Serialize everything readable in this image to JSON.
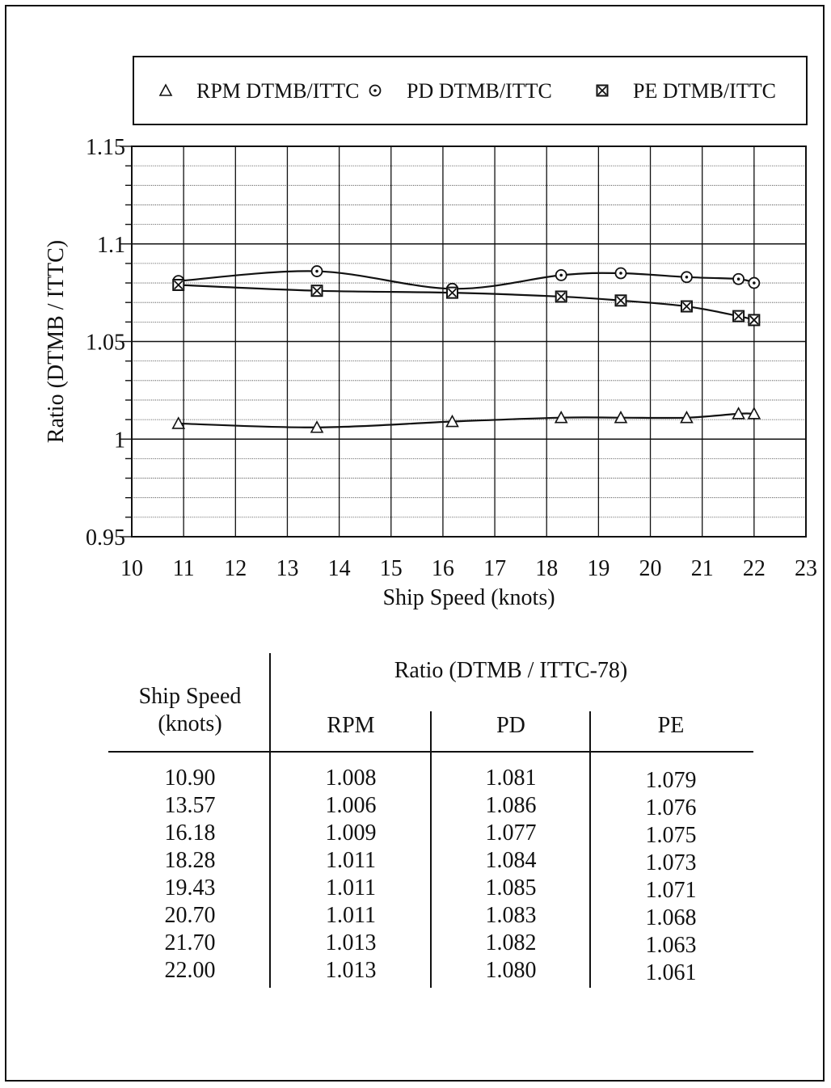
{
  "chart_data": {
    "type": "line",
    "title": "",
    "xlabel": "Ship Speed (knots)",
    "ylabel": "Ratio (DTMB / ITTC)",
    "xlim": [
      10,
      23
    ],
    "ylim": [
      0.95,
      1.15
    ],
    "x_ticks": [
      "10",
      "11",
      "12",
      "13",
      "14",
      "15",
      "16",
      "17",
      "18",
      "19",
      "20",
      "21",
      "22",
      "23"
    ],
    "y_ticks": [
      "0.95",
      "1",
      "1.05",
      "1.1",
      "1.15"
    ],
    "grid": true,
    "legend_position": "top",
    "x": [
      10.9,
      13.57,
      16.18,
      18.28,
      19.43,
      20.7,
      21.7,
      22.0
    ],
    "series": [
      {
        "name": "RPM DTMB/ITTC",
        "marker": "triangle",
        "values": [
          1.008,
          1.006,
          1.009,
          1.011,
          1.011,
          1.011,
          1.013,
          1.013
        ]
      },
      {
        "name": "PD DTMB/ITTC",
        "marker": "dotted-circle",
        "values": [
          1.081,
          1.086,
          1.077,
          1.084,
          1.085,
          1.083,
          1.082,
          1.08
        ]
      },
      {
        "name": "PE DTMB/ITTC",
        "marker": "crossed-square",
        "values": [
          1.079,
          1.076,
          1.075,
          1.073,
          1.071,
          1.068,
          1.063,
          1.061
        ]
      }
    ]
  },
  "table": {
    "speed_header_line1": "Ship Speed",
    "speed_header_line2": "(knots)",
    "group_header": "Ratio (DTMB / ITTC-78)",
    "col_headers": [
      "RPM",
      "PD",
      "PE"
    ],
    "rows": [
      [
        "10.90",
        "1.008",
        "1.081",
        "1.079"
      ],
      [
        "13.57",
        "1.006",
        "1.086",
        "1.076"
      ],
      [
        "16.18",
        "1.009",
        "1.077",
        "1.075"
      ],
      [
        "18.28",
        "1.011",
        "1.084",
        "1.073"
      ],
      [
        "19.43",
        "1.011",
        "1.085",
        "1.071"
      ],
      [
        "20.70",
        "1.011",
        "1.083",
        "1.068"
      ],
      [
        "21.70",
        "1.013",
        "1.082",
        "1.063"
      ],
      [
        "22.00",
        "1.013",
        "1.080",
        "1.061"
      ]
    ]
  }
}
